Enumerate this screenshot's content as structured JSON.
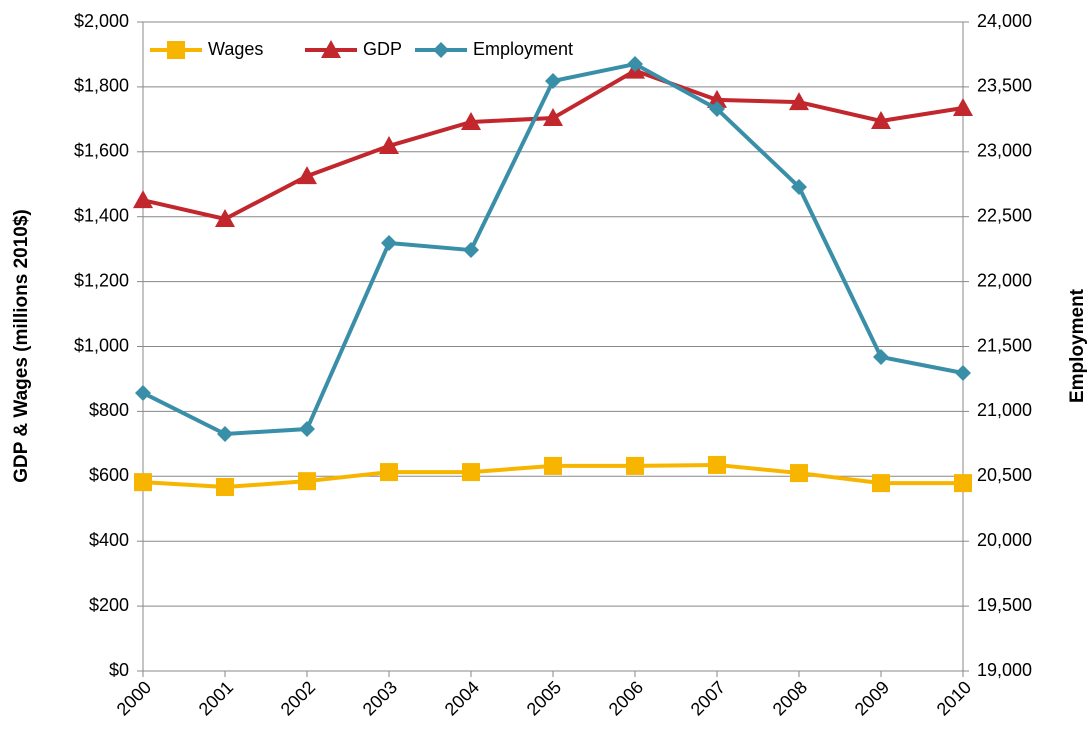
{
  "chart_data": {
    "type": "line",
    "y_label": "GDP & Wages (millions 2010$)",
    "y2_label": "Employment",
    "categories": [
      "2000",
      "2001",
      "2002",
      "2003",
      "2004",
      "2005",
      "2006",
      "2007",
      "2008",
      "2009",
      "2010"
    ],
    "series": [
      {
        "name": "Wages",
        "color": "#f7b500",
        "marker": "square",
        "values": [
          582,
          567,
          585,
          613,
          613,
          632,
          632,
          635,
          610,
          579,
          579
        ]
      },
      {
        "name": "GDP",
        "color": "#c1272d",
        "marker": "triangle",
        "values": [
          1451,
          1393,
          1525,
          1618,
          1692,
          1704,
          1850,
          1760,
          1753,
          1695,
          1735
        ]
      },
      {
        "name": "Employment",
        "color": "#3a8fa8",
        "marker": "diamond",
        "axis": "y2",
        "values": [
          21142,
          20826,
          20864,
          22297,
          22243,
          23545,
          23676,
          23330,
          22729,
          21419,
          21296
        ]
      }
    ],
    "ylim": [
      0,
      2000
    ],
    "yticks": [
      {
        "value": 0,
        "label": "$0"
      },
      {
        "value": 200,
        "label": "$200"
      },
      {
        "value": 400,
        "label": "$400"
      },
      {
        "value": 600,
        "label": "$600"
      },
      {
        "value": 800,
        "label": "$800"
      },
      {
        "value": 1000,
        "label": "$1,000"
      },
      {
        "value": 1200,
        "label": "$1,200"
      },
      {
        "value": 1400,
        "label": "$1,400"
      },
      {
        "value": 1600,
        "label": "$1,600"
      },
      {
        "value": 1800,
        "label": "$1,800"
      },
      {
        "value": 2000,
        "label": "$2,000"
      }
    ],
    "y2lim": [
      19000,
      24000
    ],
    "y2ticks": [
      {
        "value": 19000,
        "label": "19,000"
      },
      {
        "value": 19500,
        "label": "19,500"
      },
      {
        "value": 20000,
        "label": "20,000"
      },
      {
        "value": 20500,
        "label": "20,500"
      },
      {
        "value": 21000,
        "label": "21,000"
      },
      {
        "value": 21500,
        "label": "21,500"
      },
      {
        "value": 22000,
        "label": "22,000"
      },
      {
        "value": 22500,
        "label": "22,500"
      },
      {
        "value": 23000,
        "label": "23,000"
      },
      {
        "value": 23500,
        "label": "23,500"
      },
      {
        "value": 24000,
        "label": "24,000"
      }
    ],
    "grid": true,
    "legend": "top-left"
  }
}
